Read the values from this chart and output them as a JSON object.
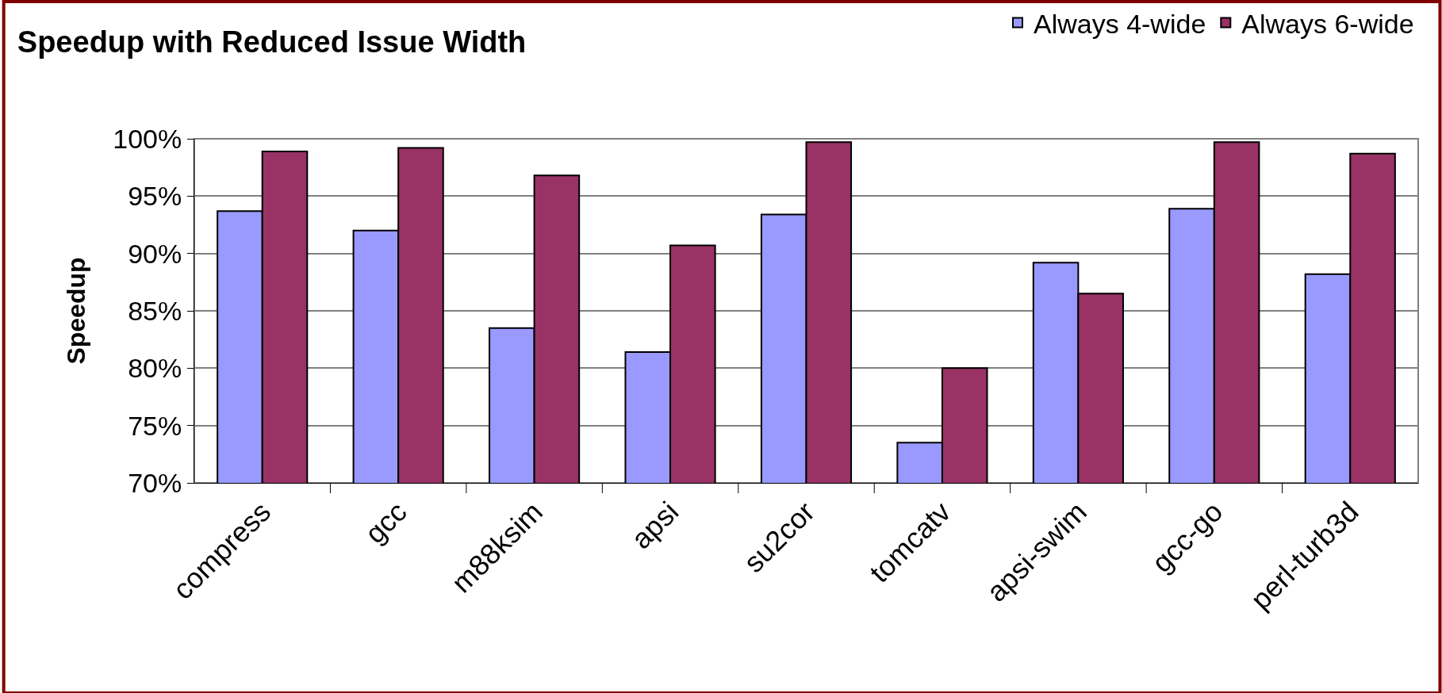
{
  "chart_data": {
    "type": "bar",
    "title": "Speedup with Reduced Issue Width",
    "ylabel": "Speedup",
    "categories": [
      "compress",
      "gcc",
      "m88ksim",
      "apsi",
      "su2cor",
      "tomcatv",
      "apsi-swim",
      "gcc-go",
      "perl-turb3d"
    ],
    "series": [
      {
        "name": "Always 4-wide",
        "color": "#9999ff",
        "values": [
          93.7,
          92.0,
          83.5,
          81.4,
          93.4,
          73.5,
          89.2,
          93.9,
          88.2
        ]
      },
      {
        "name": "Always 6-wide",
        "color": "#993366",
        "values": [
          98.9,
          99.2,
          96.8,
          90.7,
          99.7,
          80.0,
          86.5,
          99.7,
          98.7
        ]
      }
    ],
    "ylim": [
      70,
      100
    ],
    "yticks": [
      {
        "value": 70,
        "label": "70%"
      },
      {
        "value": 75,
        "label": "75%"
      },
      {
        "value": 80,
        "label": "80%"
      },
      {
        "value": 85,
        "label": "85%"
      },
      {
        "value": 90,
        "label": "90%"
      },
      {
        "value": 95,
        "label": "95%"
      },
      {
        "value": 100,
        "label": "100%"
      }
    ],
    "grid": "y",
    "legend": "top right"
  }
}
